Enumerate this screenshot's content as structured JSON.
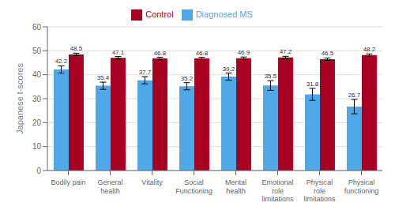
{
  "chart_data": {
    "type": "bar",
    "categories": [
      "Bodily pain",
      "General\nhealth",
      "Vitality",
      "Social\nFunctioning",
      "Mental\nhealth",
      "Emotional\nrole\nlimitations",
      "Physical\nrole\nlimitations",
      "Physical\nfunctioning"
    ],
    "series": [
      {
        "name": "Diagnosed MS",
        "color": "#4FA8E8",
        "values": [
          42.2,
          35.4,
          37.7,
          35.2,
          39.2,
          35.5,
          31.8,
          26.7
        ],
        "errors": [
          1.5,
          1.5,
          1.5,
          1.5,
          1.5,
          2.0,
          2.5,
          3.0
        ]
      },
      {
        "name": "Control",
        "color": "#A80020",
        "values": [
          48.5,
          47.1,
          46.8,
          46.8,
          46.9,
          47.2,
          46.5,
          48.2
        ],
        "errors": [
          0.5,
          0.5,
          0.5,
          0.5,
          0.5,
          0.5,
          0.5,
          0.5
        ]
      }
    ],
    "ylabel": "Japanese t-scores",
    "ylim": [
      0,
      60
    ],
    "yticks": [
      0,
      10,
      20,
      30,
      40,
      50,
      60
    ],
    "grid": true,
    "legend": "top",
    "data_labels": true
  }
}
